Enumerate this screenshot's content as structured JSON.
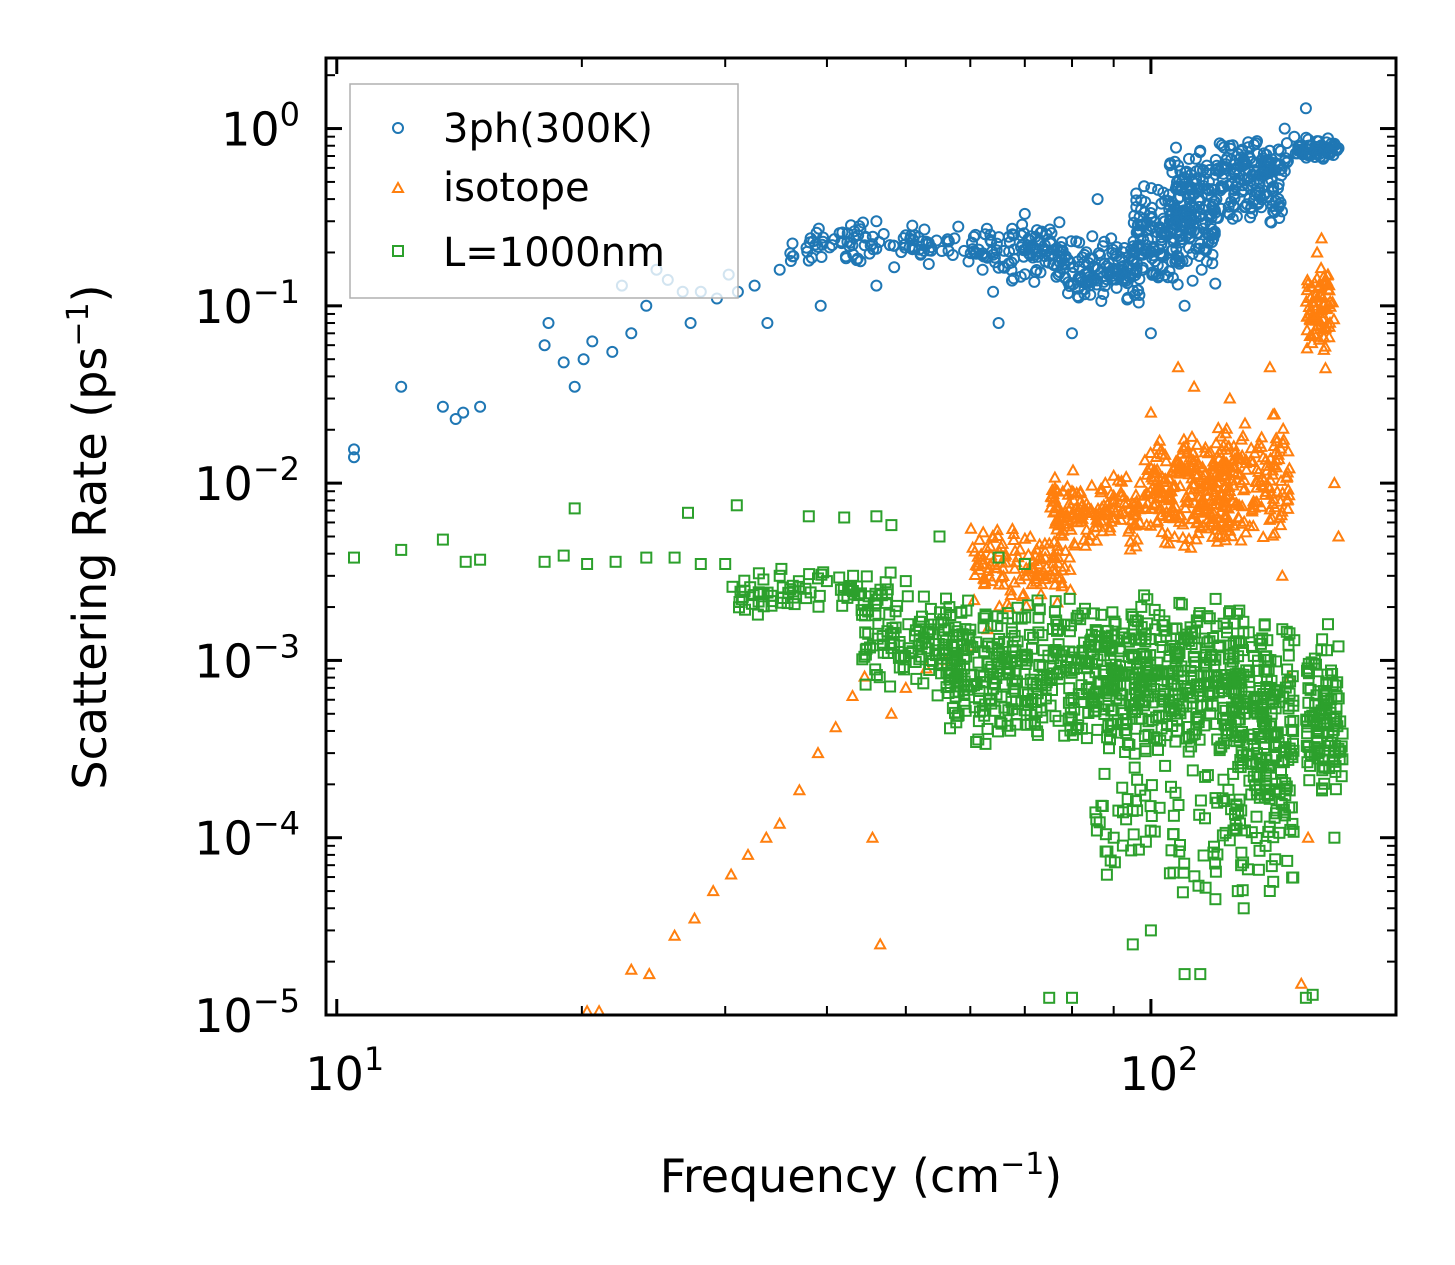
{
  "chart_data": {
    "type": "scatter",
    "xscale": "log",
    "yscale": "log",
    "xlim": [
      9.7,
      200
    ],
    "ylim": [
      1e-05,
      2.5
    ],
    "xlabel": {
      "text": "Frequency (cm",
      "sup": "−1",
      "tail": ")"
    },
    "ylabel": {
      "text": "Scattering Rate (ps",
      "sup": "−1",
      "tail": ")"
    },
    "xticks": [
      {
        "base": "10",
        "exp": "1",
        "value": 10
      },
      {
        "base": "10",
        "exp": "2",
        "value": 100
      }
    ],
    "yticks": [
      {
        "base": "10",
        "exp": "0",
        "value": 1
      },
      {
        "base": "10",
        "exp": "−1",
        "value": 0.1
      },
      {
        "base": "10",
        "exp": "−2",
        "value": 0.01
      },
      {
        "base": "10",
        "exp": "−3",
        "value": 0.001
      },
      {
        "base": "10",
        "exp": "−4",
        "value": 0.0001
      },
      {
        "base": "10",
        "exp": "−5",
        "value": 1e-05
      }
    ],
    "legend_position": "top-left",
    "series": [
      {
        "name": "3ph(300K)",
        "marker": "circle",
        "color": "#1f77b4",
        "points": [
          [
            10.5,
            0.0155
          ],
          [
            10.5,
            0.014
          ],
          [
            12,
            0.035
          ],
          [
            13.5,
            0.027
          ],
          [
            14,
            0.023
          ],
          [
            14.3,
            0.025
          ],
          [
            15,
            0.027
          ],
          [
            18,
            0.06
          ],
          [
            18.2,
            0.08
          ],
          [
            19,
            0.048
          ],
          [
            19.6,
            0.035
          ],
          [
            20.1,
            0.05
          ],
          [
            20.6,
            0.063
          ],
          [
            21.8,
            0.055
          ],
          [
            22.4,
            0.13
          ],
          [
            23,
            0.07
          ],
          [
            24,
            0.1
          ],
          [
            24.7,
            0.16
          ],
          [
            25.5,
            0.14
          ],
          [
            26.6,
            0.12
          ],
          [
            27.2,
            0.08
          ],
          [
            28,
            0.12
          ],
          [
            29.3,
            0.11
          ],
          [
            30.3,
            0.15
          ],
          [
            31.1,
            0.12
          ],
          [
            32.6,
            0.13
          ],
          [
            33.8,
            0.08
          ],
          [
            35,
            0.16
          ],
          [
            36.3,
            0.19
          ],
          [
            38,
            0.18
          ],
          [
            39.3,
            0.1
          ],
          [
            40.6,
            0.22
          ],
          [
            42.2,
            0.19
          ],
          [
            43.7,
            0.25
          ],
          [
            46,
            0.13
          ],
          [
            46,
            0.3
          ],
          [
            47.8,
            0.22
          ],
          [
            50,
            0.25
          ],
          [
            53,
            0.23
          ],
          [
            58,
            0.28
          ],
          [
            64,
            0.12
          ],
          [
            65,
            0.08
          ],
          [
            70,
            0.33
          ],
          [
            77,
            0.15
          ],
          [
            80,
            0.07
          ],
          [
            84,
            0.13
          ],
          [
            86,
            0.4
          ],
          [
            92,
            0.15
          ],
          [
            97,
            0.22
          ],
          [
            100,
            0.07
          ],
          [
            104,
            0.3
          ],
          [
            107,
            0.65
          ],
          [
            110,
            0.1
          ],
          [
            115,
            0.75
          ],
          [
            120,
            0.55
          ],
          [
            125,
            0.8
          ],
          [
            130,
            0.45
          ],
          [
            135,
            0.85
          ],
          [
            140,
            0.65
          ],
          [
            146,
            1.0
          ],
          [
            150,
            0.9
          ],
          [
            155,
            1.3
          ],
          [
            160,
            0.85
          ],
          [
            165,
            0.88
          ],
          [
            168,
            0.82
          ]
        ],
        "bands": [
          {
            "x": [
              36,
              60
            ],
            "y": [
              0.16,
              0.3
            ],
            "n": 90
          },
          {
            "x": [
              60,
              78
            ],
            "y": [
              0.13,
              0.32
            ],
            "n": 110
          },
          {
            "x": [
              78,
              98
            ],
            "y": [
              0.1,
              0.25
            ],
            "n": 130
          },
          {
            "x": [
              95,
              120
            ],
            "y": [
              0.12,
              0.55
            ],
            "n": 200
          },
          {
            "x": [
              105,
              145
            ],
            "y": [
              0.25,
              0.8
            ],
            "n": 180
          },
          {
            "x": [
              120,
              148
            ],
            "y": [
              0.45,
              0.9
            ],
            "n": 70
          },
          {
            "x": [
              150,
              170
            ],
            "y": [
              0.65,
              0.9
            ],
            "n": 60
          }
        ]
      },
      {
        "name": "isotope",
        "marker": "triangle",
        "color": "#ff7f0e",
        "points": [
          [
            20.3,
            1.05e-05
          ],
          [
            21,
            1.05e-05
          ],
          [
            23,
            1.8e-05
          ],
          [
            24.2,
            1.7e-05
          ],
          [
            26,
            2.8e-05
          ],
          [
            27.5,
            3.5e-05
          ],
          [
            29,
            5e-05
          ],
          [
            30.5,
            6.2e-05
          ],
          [
            32,
            8e-05
          ],
          [
            33.7,
            0.0001
          ],
          [
            35,
            0.00012
          ],
          [
            37,
            0.000185
          ],
          [
            39,
            0.0003
          ],
          [
            41,
            0.00042
          ],
          [
            43,
            0.00063
          ],
          [
            44.5,
            0.00081
          ],
          [
            45.5,
            0.0001
          ],
          [
            46.5,
            2.5e-05
          ],
          [
            48,
            0.0005
          ],
          [
            50,
            0.0007
          ],
          [
            53,
            0.0009
          ],
          [
            56,
            0.001
          ],
          [
            60,
            0.0012
          ],
          [
            63,
            0.0015
          ],
          [
            67,
            0.002
          ],
          [
            70,
            0.003
          ],
          [
            73,
            0.0045
          ],
          [
            80,
            0.009
          ],
          [
            90,
            0.011
          ],
          [
            100,
            0.025
          ],
          [
            108,
            0.045
          ],
          [
            113,
            0.035
          ],
          [
            125,
            0.03
          ],
          [
            135,
            0.012
          ],
          [
            140,
            0.045
          ],
          [
            145,
            0.003
          ],
          [
            148,
            0.0008
          ],
          [
            153,
            1.5e-05
          ],
          [
            156,
            0.0001
          ],
          [
            160,
            0.2
          ],
          [
            162,
            0.24
          ],
          [
            165,
            0.15
          ],
          [
            168,
            0.01
          ],
          [
            170,
            0.005
          ]
        ],
        "bands": [
          {
            "x": [
              60,
              80
            ],
            "y": [
              0.002,
              0.006
            ],
            "n": 120
          },
          {
            "x": [
              75,
              98
            ],
            "y": [
              0.004,
              0.012
            ],
            "n": 160
          },
          {
            "x": [
              98,
              125
            ],
            "y": [
              0.004,
              0.02
            ],
            "n": 240
          },
          {
            "x": [
              120,
              148
            ],
            "y": [
              0.004,
              0.025
            ],
            "n": 160
          },
          {
            "x": [
              155,
              168
            ],
            "y": [
              0.04,
              0.2
            ],
            "n": 80
          }
        ]
      },
      {
        "name": "L=1000nm",
        "marker": "square",
        "color": "#2ca02c",
        "points": [
          [
            10.5,
            0.0038
          ],
          [
            12,
            0.0042
          ],
          [
            13.5,
            0.0048
          ],
          [
            14.4,
            0.0036
          ],
          [
            15,
            0.0037
          ],
          [
            18,
            0.0036
          ],
          [
            19,
            0.0039
          ],
          [
            19.6,
            0.0072
          ],
          [
            20.3,
            0.0035
          ],
          [
            22,
            0.0036
          ],
          [
            24,
            0.0038
          ],
          [
            26,
            0.0038
          ],
          [
            27,
            0.0068
          ],
          [
            28,
            0.0035
          ],
          [
            30,
            0.0035
          ],
          [
            31,
            0.0075
          ],
          [
            33,
            0.0031
          ],
          [
            35,
            0.003
          ],
          [
            38,
            0.0065
          ],
          [
            40,
            0.0028
          ],
          [
            42,
            0.0064
          ],
          [
            45,
            0.0023
          ],
          [
            46,
            0.0065
          ],
          [
            48,
            0.0058
          ],
          [
            50,
            0.0028
          ],
          [
            52,
            0.0015
          ],
          [
            55,
            0.005
          ],
          [
            60,
            0.0012
          ],
          [
            65,
            0.0038
          ],
          [
            70,
            0.0035
          ],
          [
            72,
            0.00045
          ],
          [
            75,
            1.25e-05
          ],
          [
            80,
            1.25e-05
          ],
          [
            85,
            0.0006
          ],
          [
            90,
            0.0001
          ],
          [
            95,
            2.5e-05
          ],
          [
            100,
            3e-05
          ],
          [
            110,
            1.7e-05
          ],
          [
            115,
            1.7e-05
          ],
          [
            120,
            4.5e-05
          ],
          [
            130,
            4e-05
          ],
          [
            135,
            0.0003
          ],
          [
            140,
            0.0007
          ],
          [
            145,
            0.0015
          ],
          [
            150,
            0.0013
          ],
          [
            155,
            1.25e-05
          ],
          [
            158,
            1.3e-05
          ],
          [
            160,
            0.0003
          ],
          [
            165,
            0.0016
          ],
          [
            168,
            0.0001
          ],
          [
            170,
            0.0012
          ]
        ],
        "bands": [
          {
            "x": [
              30,
              48
            ],
            "y": [
              0.0018,
              0.0034
            ],
            "n": 70
          },
          {
            "x": [
              44,
              60
            ],
            "y": [
              0.0006,
              0.0025
            ],
            "n": 120
          },
          {
            "x": [
              56,
              90
            ],
            "y": [
              0.0003,
              0.0025
            ],
            "n": 340
          },
          {
            "x": [
              88,
              130
            ],
            "y": [
              0.00025,
              0.0025
            ],
            "n": 360
          },
          {
            "x": [
              125,
              150
            ],
            "y": [
              0.0001,
              0.002
            ],
            "n": 200
          },
          {
            "x": [
              85,
              150
            ],
            "y": [
              4e-05,
              0.0003
            ],
            "n": 120
          },
          {
            "x": [
              155,
              172
            ],
            "y": [
              0.00015,
              0.0015
            ],
            "n": 110
          }
        ]
      }
    ]
  }
}
